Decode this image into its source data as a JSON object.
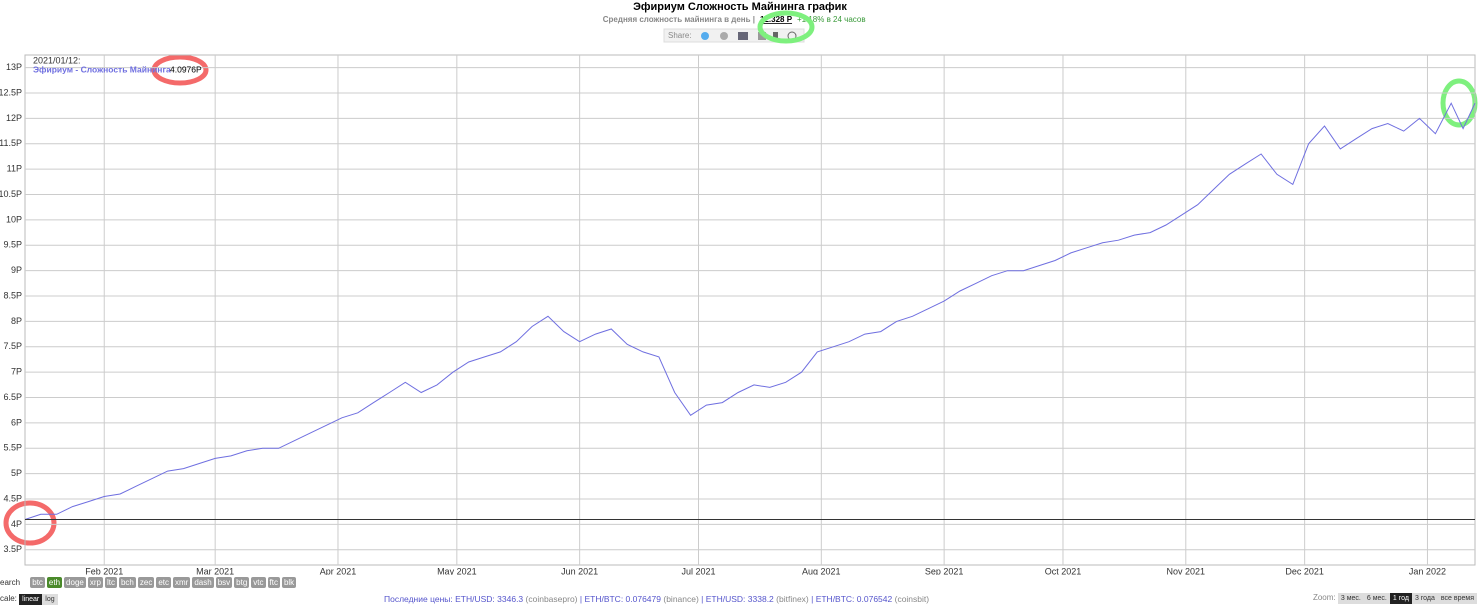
{
  "header": {
    "title": "Эфириум Сложность Майнинга график",
    "subtitle": "Средняя сложность майнинга в день |",
    "current": "12.328 P",
    "change": "+1.18% в 24 часов",
    "share": "Share:"
  },
  "chart_data": {
    "type": "line",
    "color": "#6f6fe0",
    "grid": true,
    "xlim": [
      "2021/01/12",
      "2022/01/13"
    ],
    "ylim": [
      3.2,
      13.25
    ],
    "yticks": [
      {
        "value": 3.5,
        "label": "3.5P"
      },
      {
        "value": 4,
        "label": "4P"
      },
      {
        "value": 4.5,
        "label": "4.5P"
      },
      {
        "value": 5,
        "label": "5P"
      },
      {
        "value": 5.5,
        "label": "5.5P"
      },
      {
        "value": 6,
        "label": "6P"
      },
      {
        "value": 6.5,
        "label": "6.5P"
      },
      {
        "value": 7,
        "label": "7P"
      },
      {
        "value": 7.5,
        "label": "7.5P"
      },
      {
        "value": 8,
        "label": "8P"
      },
      {
        "value": 8.5,
        "label": "8.5P"
      },
      {
        "value": 9,
        "label": "9P"
      },
      {
        "value": 9.5,
        "label": "9.5P"
      },
      {
        "value": 10,
        "label": "10P"
      },
      {
        "value": 10.5,
        "label": "10.5P"
      },
      {
        "value": 11,
        "label": "11P"
      },
      {
        "value": 11.5,
        "label": "11.5P"
      },
      {
        "value": 12,
        "label": "12P"
      },
      {
        "value": 12.5,
        "label": "12.5P"
      },
      {
        "value": 13,
        "label": "13P"
      }
    ],
    "xticks": [
      {
        "value": "2021/02/01",
        "label": "Feb 2021"
      },
      {
        "value": "2021/03/01",
        "label": "Mar 2021"
      },
      {
        "value": "2021/04/01",
        "label": "Apr 2021"
      },
      {
        "value": "2021/05/01",
        "label": "May 2021"
      },
      {
        "value": "2021/06/01",
        "label": "Jun 2021"
      },
      {
        "value": "2021/07/01",
        "label": "Jul 2021"
      },
      {
        "value": "2021/08/01",
        "label": "Aug 2021"
      },
      {
        "value": "2021/09/01",
        "label": "Sep 2021"
      },
      {
        "value": "2021/10/01",
        "label": "Oct 2021"
      },
      {
        "value": "2021/11/01",
        "label": "Nov 2021"
      },
      {
        "value": "2021/12/01",
        "label": "Dec 2021"
      },
      {
        "value": "2022/01/01",
        "label": "Jan 2022"
      }
    ],
    "x": [
      "2021/01/12",
      "2021/01/16",
      "2021/01/20",
      "2021/01/24",
      "2021/01/28",
      "2021/02/01",
      "2021/02/05",
      "2021/02/09",
      "2021/02/13",
      "2021/02/17",
      "2021/02/21",
      "2021/02/25",
      "2021/03/01",
      "2021/03/05",
      "2021/03/09",
      "2021/03/13",
      "2021/03/17",
      "2021/03/21",
      "2021/03/25",
      "2021/03/29",
      "2021/04/02",
      "2021/04/06",
      "2021/04/10",
      "2021/04/14",
      "2021/04/18",
      "2021/04/22",
      "2021/04/26",
      "2021/04/30",
      "2021/05/04",
      "2021/05/08",
      "2021/05/12",
      "2021/05/16",
      "2021/05/20",
      "2021/05/24",
      "2021/05/28",
      "2021/06/01",
      "2021/06/05",
      "2021/06/09",
      "2021/06/13",
      "2021/06/17",
      "2021/06/21",
      "2021/06/25",
      "2021/06/29",
      "2021/07/03",
      "2021/07/07",
      "2021/07/11",
      "2021/07/15",
      "2021/07/19",
      "2021/07/23",
      "2021/07/27",
      "2021/07/31",
      "2021/08/04",
      "2021/08/08",
      "2021/08/12",
      "2021/08/16",
      "2021/08/20",
      "2021/08/24",
      "2021/08/28",
      "2021/09/01",
      "2021/09/05",
      "2021/09/09",
      "2021/09/13",
      "2021/09/17",
      "2021/09/21",
      "2021/09/25",
      "2021/09/29",
      "2021/10/03",
      "2021/10/07",
      "2021/10/11",
      "2021/10/15",
      "2021/10/19",
      "2021/10/23",
      "2021/10/27",
      "2021/10/31",
      "2021/11/04",
      "2021/11/08",
      "2021/11/12",
      "2021/11/16",
      "2021/11/20",
      "2021/11/24",
      "2021/11/28",
      "2021/12/02",
      "2021/12/06",
      "2021/12/10",
      "2021/12/14",
      "2021/12/18",
      "2021/12/22",
      "2021/12/26",
      "2021/12/30",
      "2022/01/03",
      "2022/01/07",
      "2022/01/10",
      "2022/01/13"
    ],
    "series": [
      {
        "name": "Эфириум - Сложность Майнинга",
        "values": [
          4.0976,
          4.2,
          4.2,
          4.35,
          4.45,
          4.55,
          4.6,
          4.75,
          4.9,
          5.05,
          5.1,
          5.2,
          5.3,
          5.35,
          5.45,
          5.5,
          5.5,
          5.65,
          5.8,
          5.95,
          6.1,
          6.2,
          6.4,
          6.6,
          6.8,
          6.6,
          6.75,
          7.0,
          7.2,
          7.3,
          7.4,
          7.6,
          7.9,
          8.1,
          7.8,
          7.6,
          7.75,
          7.85,
          7.55,
          7.4,
          7.3,
          6.6,
          6.15,
          6.35,
          6.4,
          6.6,
          6.75,
          6.7,
          6.8,
          7.0,
          7.4,
          7.5,
          7.6,
          7.75,
          7.8,
          8.0,
          8.1,
          8.25,
          8.4,
          8.6,
          8.75,
          8.9,
          9.0,
          9.0,
          9.1,
          9.2,
          9.35,
          9.45,
          9.55,
          9.6,
          9.7,
          9.75,
          9.9,
          10.1,
          10.3,
          10.6,
          10.9,
          11.1,
          11.3,
          10.9,
          10.7,
          11.5,
          11.85,
          11.4,
          11.6,
          11.8,
          11.9,
          11.75,
          12.0,
          11.7,
          12.3,
          11.8,
          12.3
        ]
      }
    ],
    "tooltip": {
      "date": "2021/01/12:",
      "value": 4.0976,
      "value_label": "4.0976P"
    }
  },
  "controls": {
    "search": "earch",
    "coins": [
      "btc",
      "eth",
      "doge",
      "xrp",
      "ltc",
      "bch",
      "zec",
      "etc",
      "xmr",
      "dash",
      "bsv",
      "btg",
      "vtc",
      "ftc",
      "blk"
    ],
    "active_coin": "eth",
    "scale": "cale:",
    "scales": [
      "linear",
      "log"
    ],
    "active_scale": "linear",
    "prices_label": "Последние цены:",
    "prices": [
      {
        "pair": "ETH/USD: 3346.3",
        "source": "(coinbasepro)"
      },
      {
        "pair": "ETH/BTC: 0.076479",
        "source": "(binance)"
      },
      {
        "pair": "ETH/USD: 3338.2",
        "source": "(bitfinex)"
      },
      {
        "pair": "ETH/BTC: 0.076542",
        "source": "(coinsbit)"
      }
    ],
    "zoom": "Zoom:",
    "zooms": [
      "3 мес.",
      "6 мес.",
      "1 год",
      "3 года",
      "все время"
    ],
    "active_zoom": "1 год"
  }
}
